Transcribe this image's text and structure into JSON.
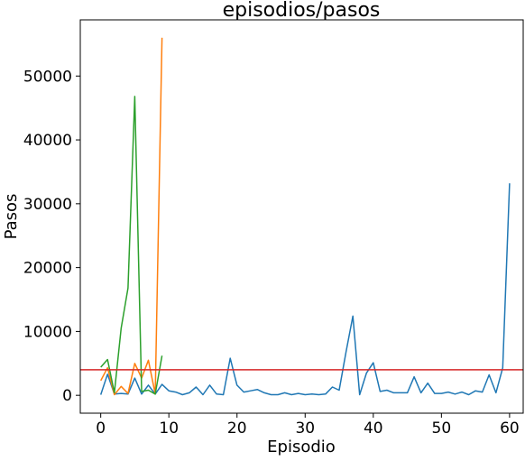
{
  "chart_data": {
    "type": "line",
    "title": "episodios/pasos",
    "xlabel": "Episodio",
    "ylabel": "Pasos",
    "xlim": [
      -3,
      62
    ],
    "ylim": [
      -2800,
      58800
    ],
    "xticks": [
      0,
      10,
      20,
      30,
      40,
      50,
      60
    ],
    "yticks": [
      0,
      10000,
      20000,
      30000,
      40000,
      50000
    ],
    "grid": false,
    "legend": false,
    "reference_line": {
      "y": 4000,
      "color": "#d62728"
    },
    "series": [
      {
        "color": "#1f77b4",
        "x": [
          0,
          1,
          2,
          3,
          4,
          5,
          6,
          7,
          8,
          9,
          10,
          11,
          12,
          13,
          14,
          15,
          16,
          17,
          18,
          19,
          20,
          21,
          22,
          23,
          24,
          25,
          26,
          27,
          28,
          29,
          30,
          31,
          32,
          33,
          34,
          35,
          36,
          37,
          38,
          39,
          40,
          41,
          42,
          43,
          44,
          45,
          46,
          47,
          48,
          49,
          50,
          51,
          52,
          53,
          54,
          55,
          56,
          57,
          58,
          59,
          60
        ],
        "y": [
          100,
          3300,
          200,
          300,
          200,
          2700,
          200,
          1600,
          200,
          1700,
          700,
          500,
          100,
          400,
          1300,
          100,
          1600,
          200,
          100,
          5800,
          1600,
          500,
          700,
          900,
          400,
          100,
          100,
          400,
          100,
          300,
          100,
          200,
          100,
          200,
          1300,
          800,
          6800,
          12400,
          100,
          3500,
          5100,
          600,
          800,
          400,
          400,
          400,
          2900,
          400,
          1900,
          300,
          300,
          500,
          200,
          500,
          100,
          700,
          500,
          3200,
          400,
          4300,
          33200
        ]
      },
      {
        "color": "#ff7f0e",
        "x": [
          0,
          1,
          2,
          3,
          4,
          5,
          6,
          7,
          8,
          9
        ],
        "y": [
          2300,
          4300,
          100,
          1400,
          300,
          5000,
          2700,
          5500,
          200,
          56000
        ]
      },
      {
        "color": "#2ca02c",
        "x": [
          0,
          1,
          2,
          3,
          4,
          5,
          6,
          7,
          8,
          9
        ],
        "y": [
          4400,
          5600,
          400,
          10500,
          16800,
          46800,
          600,
          800,
          200,
          6200
        ]
      }
    ]
  }
}
